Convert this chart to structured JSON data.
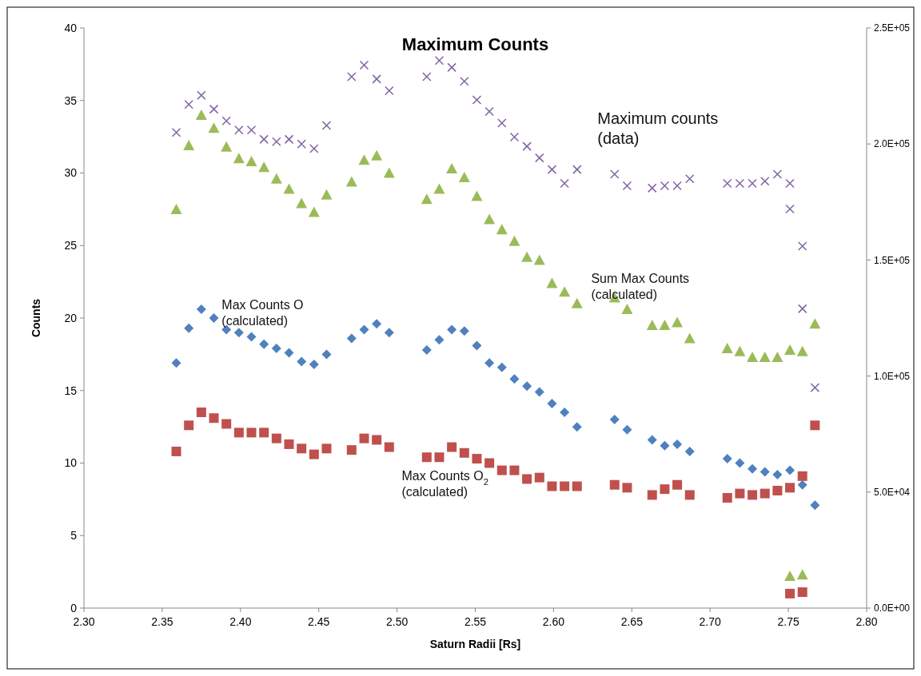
{
  "chart_data": {
    "type": "scatter",
    "title": "Maximum Counts",
    "xlabel": "Saturn Radii [Rs]",
    "ylabel": "Counts",
    "xlim": [
      2.3,
      2.8
    ],
    "xticks": [
      {
        "value": 2.3,
        "label": "2.30"
      },
      {
        "value": 2.35,
        "label": "2.35"
      },
      {
        "value": 2.4,
        "label": "2.40"
      },
      {
        "value": 2.45,
        "label": "2.45"
      },
      {
        "value": 2.5,
        "label": "2.50"
      },
      {
        "value": 2.55,
        "label": "2.55"
      },
      {
        "value": 2.6,
        "label": "2.60"
      },
      {
        "value": 2.65,
        "label": "2.65"
      },
      {
        "value": 2.7,
        "label": "2.70"
      },
      {
        "value": 2.75,
        "label": "2.75"
      },
      {
        "value": 2.8,
        "label": "2.80"
      }
    ],
    "ylim": [
      0,
      40
    ],
    "yticks": [
      0,
      5,
      10,
      15,
      20,
      25,
      30,
      35,
      40
    ],
    "y2lim": [
      0,
      250000
    ],
    "y2ticks": [
      {
        "value": 0,
        "label": "0.0E+00"
      },
      {
        "value": 50000,
        "label": "5.0E+04"
      },
      {
        "value": 100000,
        "label": "1.0E+05"
      },
      {
        "value": 150000,
        "label": "1.5E+05"
      },
      {
        "value": 200000,
        "label": "2.0E+05"
      },
      {
        "value": 250000,
        "label": "2.5E+05"
      }
    ],
    "grid": false,
    "series": [
      {
        "name": "Max Counts O (calculated)",
        "color": "#4f81bd",
        "marker": "diamond",
        "x": [
          2.359,
          2.367,
          2.375,
          2.383,
          2.391,
          2.399,
          2.407,
          2.415,
          2.423,
          2.431,
          2.439,
          2.447,
          2.455,
          2.471,
          2.479,
          2.487,
          2.495,
          2.519,
          2.527,
          2.535,
          2.543,
          2.551,
          2.559,
          2.567,
          2.575,
          2.583,
          2.591,
          2.599,
          2.607,
          2.615,
          2.639,
          2.647,
          2.663,
          2.671,
          2.679,
          2.687,
          2.711,
          2.719,
          2.727,
          2.735,
          2.743,
          2.751,
          2.759,
          2.767
        ],
        "values": [
          16.9,
          19.3,
          20.6,
          20.0,
          19.2,
          19.0,
          18.7,
          18.2,
          17.9,
          17.6,
          17.0,
          16.8,
          17.5,
          18.6,
          19.2,
          19.6,
          19.0,
          17.8,
          18.5,
          19.2,
          19.1,
          18.1,
          16.9,
          16.6,
          15.8,
          15.3,
          14.9,
          14.1,
          13.5,
          12.5,
          13.0,
          12.3,
          11.6,
          11.2,
          11.3,
          10.8,
          10.3,
          10.0,
          9.6,
          9.4,
          9.2,
          9.5,
          8.5,
          7.1
        ]
      },
      {
        "name": "Max Counts O$_{2}$ (calculated)",
        "color": "#c0504d",
        "marker": "square",
        "x": [
          2.359,
          2.367,
          2.375,
          2.383,
          2.391,
          2.399,
          2.407,
          2.415,
          2.423,
          2.431,
          2.439,
          2.447,
          2.455,
          2.471,
          2.479,
          2.487,
          2.495,
          2.519,
          2.527,
          2.535,
          2.543,
          2.551,
          2.559,
          2.567,
          2.575,
          2.583,
          2.591,
          2.599,
          2.607,
          2.615,
          2.639,
          2.647,
          2.663,
          2.671,
          2.679,
          2.687,
          2.711,
          2.719,
          2.727,
          2.735,
          2.743,
          2.751,
          2.759,
          2.767,
          2.751,
          2.759
        ],
        "values": [
          10.8,
          12.6,
          13.5,
          13.1,
          12.7,
          12.1,
          12.1,
          12.1,
          11.7,
          11.3,
          11.0,
          10.6,
          11.0,
          10.9,
          11.7,
          11.6,
          11.1,
          10.4,
          10.4,
          11.1,
          10.7,
          10.3,
          10.0,
          9.5,
          9.5,
          8.9,
          9.0,
          8.4,
          8.4,
          8.4,
          8.5,
          8.3,
          7.8,
          8.2,
          8.5,
          7.8,
          7.6,
          7.9,
          7.8,
          7.9,
          8.1,
          8.3,
          9.1,
          12.6,
          1.0,
          1.1
        ]
      },
      {
        "name": "Sum Max Counts (calculated)",
        "color": "#9bbb59",
        "marker": "triangle",
        "x": [
          2.359,
          2.367,
          2.375,
          2.383,
          2.391,
          2.399,
          2.407,
          2.415,
          2.423,
          2.431,
          2.439,
          2.447,
          2.455,
          2.471,
          2.479,
          2.487,
          2.495,
          2.519,
          2.527,
          2.535,
          2.543,
          2.551,
          2.559,
          2.567,
          2.575,
          2.583,
          2.591,
          2.599,
          2.607,
          2.615,
          2.639,
          2.647,
          2.663,
          2.671,
          2.679,
          2.687,
          2.711,
          2.719,
          2.727,
          2.735,
          2.743,
          2.751,
          2.759,
          2.767,
          2.751,
          2.759
        ],
        "values": [
          27.5,
          31.9,
          34.0,
          33.1,
          31.8,
          31.0,
          30.8,
          30.4,
          29.6,
          28.9,
          27.9,
          27.3,
          28.5,
          29.4,
          30.9,
          31.2,
          30.0,
          28.2,
          28.9,
          30.3,
          29.7,
          28.4,
          26.8,
          26.1,
          25.3,
          24.2,
          24.0,
          22.4,
          21.8,
          21.0,
          21.4,
          20.6,
          19.5,
          19.5,
          19.7,
          18.6,
          17.9,
          17.7,
          17.3,
          17.3,
          17.3,
          17.8,
          17.7,
          19.6,
          2.2,
          2.3
        ]
      },
      {
        "name": "Maximum counts (data)",
        "color": "#8064a2",
        "marker": "cross",
        "axis": "y2",
        "x": [
          2.359,
          2.367,
          2.375,
          2.383,
          2.391,
          2.399,
          2.407,
          2.415,
          2.423,
          2.431,
          2.439,
          2.447,
          2.455,
          2.471,
          2.479,
          2.487,
          2.495,
          2.519,
          2.527,
          2.535,
          2.543,
          2.551,
          2.559,
          2.567,
          2.575,
          2.583,
          2.591,
          2.599,
          2.607,
          2.615,
          2.639,
          2.647,
          2.663,
          2.671,
          2.679,
          2.687,
          2.711,
          2.719,
          2.727,
          2.735,
          2.743,
          2.751,
          2.751,
          2.759,
          2.759,
          2.767
        ],
        "values": [
          205000,
          217000,
          221000,
          215000,
          210000,
          206000,
          206000,
          202000,
          201000,
          202000,
          200000,
          198000,
          208000,
          229000,
          234000,
          228000,
          223000,
          229000,
          236000,
          233000,
          227000,
          219000,
          214000,
          209000,
          203000,
          199000,
          194000,
          189000,
          183000,
          189000,
          187000,
          182000,
          181000,
          182000,
          182000,
          185000,
          183000,
          183000,
          183000,
          184000,
          187000,
          183000,
          172000,
          156000,
          129000,
          95000
        ]
      }
    ]
  }
}
